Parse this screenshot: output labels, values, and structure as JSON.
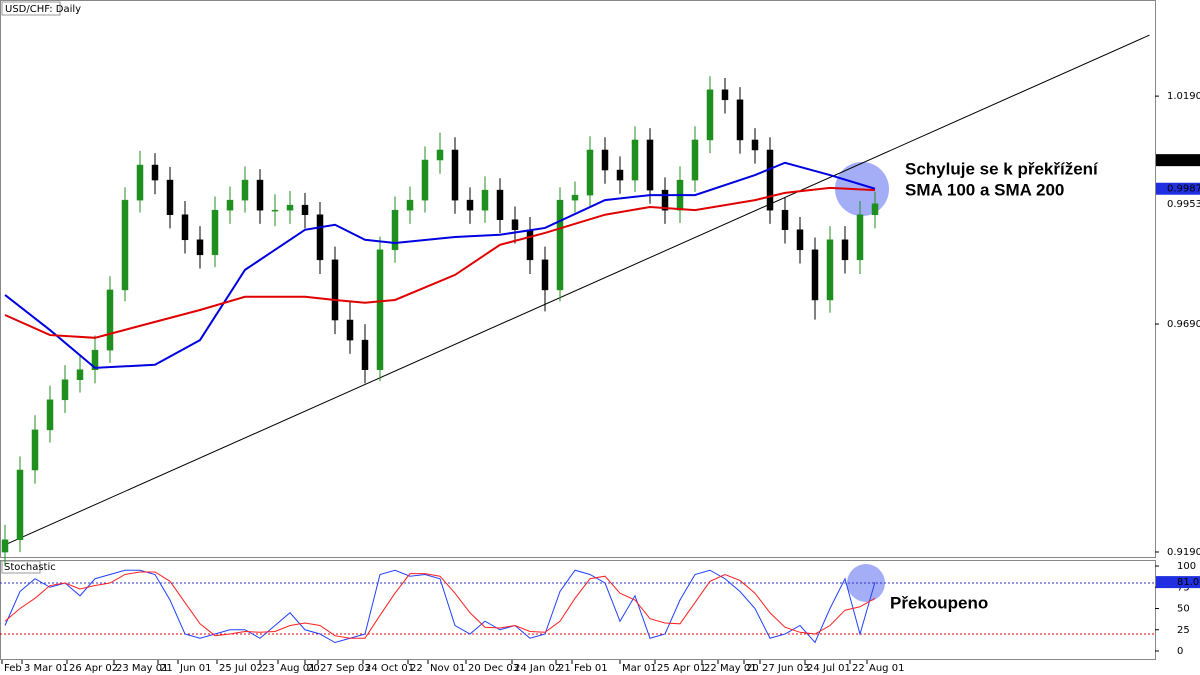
{
  "chart_data": {
    "type": "candlestick",
    "title": "USD/CHF: Daily",
    "subplot_title": "Stochastic",
    "ylim": [
      0.9177,
      1.0401
    ],
    "yticks": [
      1.01902,
      0.96902,
      0.91902
    ],
    "price_labels": [
      1.00497,
      {
        "value": 0.9987,
        "label": "0.99870"
      },
      0.99536
    ],
    "up_color": "#1f8f1f",
    "down_color": "#000000",
    "candles": [
      [
        0.919,
        0.925,
        0.916,
        0.9217
      ],
      [
        0.9217,
        0.94,
        0.919,
        0.937
      ],
      [
        0.937,
        0.949,
        0.934,
        0.9458
      ],
      [
        0.9458,
        0.9555,
        0.943,
        0.9524
      ],
      [
        0.9524,
        0.96,
        0.9495,
        0.9568
      ],
      [
        0.9568,
        0.962,
        0.954,
        0.959
      ],
      [
        0.959,
        0.9665,
        0.956,
        0.9633
      ],
      [
        0.9633,
        0.9795,
        0.9605,
        0.9765
      ],
      [
        0.9765,
        0.999,
        0.974,
        0.9962
      ],
      [
        0.9962,
        1.007,
        0.9935,
        1.0039
      ],
      [
        1.0039,
        1.0065,
        0.9975,
        1.0006
      ],
      [
        1.0006,
        1.0035,
        0.99,
        0.993
      ],
      [
        0.993,
        0.996,
        0.9845,
        0.9875
      ],
      [
        0.9875,
        0.9905,
        0.9812,
        0.9842
      ],
      [
        0.9842,
        0.997,
        0.9815,
        0.994
      ],
      [
        0.994,
        0.9992,
        0.991,
        0.9962
      ],
      [
        0.9962,
        1.0036,
        0.9935,
        1.0006
      ],
      [
        1.0006,
        1.003,
        0.991,
        0.994
      ],
      [
        0.994,
        0.9975,
        0.9905,
        0.994
      ],
      [
        0.994,
        0.9982,
        0.991,
        0.9951
      ],
      [
        0.9951,
        0.9978,
        0.99,
        0.993
      ],
      [
        0.993,
        0.9958,
        0.98,
        0.9831
      ],
      [
        0.9831,
        0.986,
        0.9668,
        0.9699
      ],
      [
        0.9699,
        0.974,
        0.9625,
        0.9655
      ],
      [
        0.9655,
        0.969,
        0.956,
        0.959
      ],
      [
        0.959,
        0.9882,
        0.9565,
        0.9853
      ],
      [
        0.9853,
        0.997,
        0.9825,
        0.994
      ],
      [
        0.994,
        0.9992,
        0.991,
        0.9962
      ],
      [
        0.9962,
        1.008,
        0.9935,
        1.005
      ],
      [
        1.005,
        1.011,
        1.002,
        1.0072
      ],
      [
        1.0072,
        1.01,
        0.9932,
        0.9962
      ],
      [
        0.9962,
        0.999,
        0.991,
        0.994
      ],
      [
        0.994,
        1.0014,
        0.9912,
        0.9984
      ],
      [
        0.9984,
        1.001,
        0.989,
        0.9919
      ],
      [
        0.9919,
        0.9948,
        0.9867,
        0.9897
      ],
      [
        0.9897,
        0.9925,
        0.98,
        0.9831
      ],
      [
        0.9831,
        0.986,
        0.9718,
        0.9765
      ],
      [
        0.9765,
        0.999,
        0.974,
        0.9962
      ],
      [
        0.9962,
        1.0003,
        0.9935,
        0.9973
      ],
      [
        0.9973,
        1.0102,
        0.9945,
        1.0072
      ],
      [
        1.0072,
        1.01,
        0.9998,
        1.0028
      ],
      [
        1.0028,
        1.0058,
        0.9976,
        1.0006
      ],
      [
        1.0006,
        1.0124,
        0.998,
        1.0094
      ],
      [
        1.0094,
        1.012,
        0.9954,
        0.9984
      ],
      [
        0.9984,
        1.0012,
        0.991,
        0.994
      ],
      [
        0.994,
        1.0036,
        0.9912,
        1.0006
      ],
      [
        1.0006,
        1.0124,
        0.998,
        1.0094
      ],
      [
        1.0094,
        1.0234,
        1.0065,
        1.0204
      ],
      [
        1.0204,
        1.023,
        1.0152,
        1.0182
      ],
      [
        1.0182,
        1.021,
        1.0064,
        1.0094
      ],
      [
        1.0094,
        1.012,
        1.0042,
        1.0072
      ],
      [
        1.0072,
        1.01,
        0.991,
        0.994
      ],
      [
        0.994,
        0.9968,
        0.9867,
        0.9897
      ],
      [
        0.9897,
        0.9925,
        0.9823,
        0.9853
      ],
      [
        0.9853,
        0.988,
        0.97,
        0.9743
      ],
      [
        0.9743,
        0.9905,
        0.9715,
        0.9875
      ],
      [
        0.9875,
        0.9905,
        0.9801,
        0.9831
      ],
      [
        0.9831,
        0.996,
        0.98,
        0.993
      ],
      [
        0.993,
        0.998,
        0.99,
        0.9954
      ]
    ],
    "moving_averages": [
      {
        "color": "#0000e0",
        "x": [
          0,
          3,
          6,
          10,
          13,
          16,
          20,
          22,
          24,
          26,
          30,
          33,
          36,
          40,
          43,
          46,
          50,
          52,
          55,
          58
        ],
        "values": [
          0.9754,
          0.9677,
          0.9594,
          0.9601,
          0.9655,
          0.9809,
          0.9897,
          0.9908,
          0.9875,
          0.9868,
          0.9881,
          0.9886,
          0.9901,
          0.9962,
          0.9973,
          0.9973,
          1.0017,
          1.0044,
          1.0017,
          0.9987
        ]
      },
      {
        "color": "#e00000",
        "x": [
          0,
          3,
          6,
          10,
          13,
          16,
          20,
          22,
          24,
          26,
          30,
          33,
          36,
          40,
          43,
          46,
          50,
          52,
          55,
          58
        ],
        "values": [
          0.971,
          0.9666,
          0.966,
          0.9695,
          0.9721,
          0.975,
          0.975,
          0.9743,
          0.9737,
          0.9743,
          0.9798,
          0.9864,
          0.989,
          0.993,
          0.9947,
          0.994,
          0.9962,
          0.9978,
          0.9989,
          0.9984
        ]
      }
    ],
    "trendline": {
      "x": [
        0,
        76.3
      ],
      "values": [
        0.9206,
        1.0324
      ]
    },
    "x_labels": [
      "Feb",
      "3 Mar 01",
      "26 Apr 02",
      "23 May 01",
      "21",
      "Jun 01",
      "25 Jul 02",
      "23",
      "Aug 01",
      "20",
      "27 Sep 03",
      "24 Oct 01",
      "22",
      "Nov 01",
      "20 Dec 03",
      "24 Jan 02",
      "21",
      "Feb 01",
      "Mar 01",
      "25 Apr 01",
      "22",
      "May 01",
      "20",
      "27 Jun 03",
      "24 Jul 01",
      "22",
      "Aug 01"
    ],
    "annotations": [
      "Schyluje se k překřížení",
      "SMA 100 a SMA 200",
      "Překoupeno"
    ],
    "stochastic": {
      "ylim": [
        0,
        100
      ],
      "yticks": [
        100,
        75,
        50,
        25,
        0
      ],
      "levels": [
        80,
        20
      ],
      "level_colors": [
        "#3030c0",
        "#e00000"
      ],
      "last_label": 81.06,
      "series": [
        {
          "color": "#2040ff",
          "values": [
            30,
            70,
            85,
            75,
            80,
            65,
            85,
            90,
            95,
            95,
            90,
            60,
            20,
            15,
            20,
            25,
            25,
            15,
            30,
            45,
            25,
            20,
            10,
            15,
            20,
            90,
            95,
            88,
            90,
            85,
            30,
            20,
            35,
            25,
            30,
            15,
            20,
            70,
            95,
            90,
            80,
            35,
            65,
            15,
            20,
            60,
            90,
            95,
            85,
            70,
            50,
            15,
            20,
            30,
            10,
            50,
            85,
            20,
            81.06
          ]
        },
        {
          "color": "#ff2020",
          "values": [
            35,
            50,
            62,
            77,
            80,
            73,
            77,
            80,
            90,
            93,
            93,
            82,
            57,
            32,
            18,
            20,
            23,
            22,
            23,
            30,
            33,
            30,
            18,
            15,
            15,
            42,
            68,
            91,
            91,
            88,
            68,
            45,
            28,
            27,
            30,
            23,
            22,
            35,
            62,
            85,
            88,
            68,
            60,
            38,
            33,
            32,
            57,
            82,
            90,
            83,
            68,
            45,
            28,
            22,
            20,
            30,
            48,
            52,
            62
          ]
        }
      ]
    }
  }
}
